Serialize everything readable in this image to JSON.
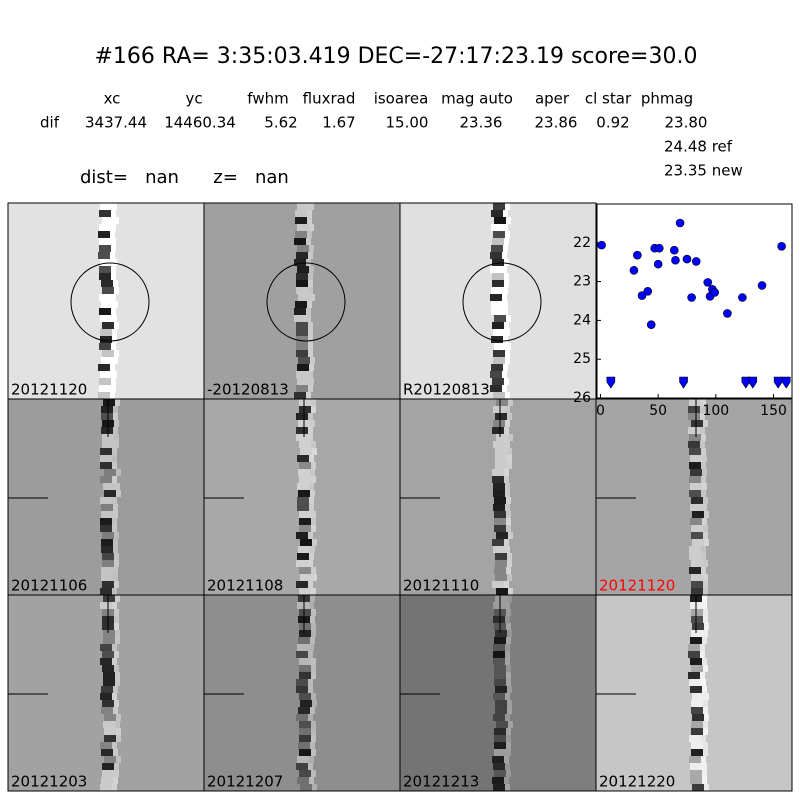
{
  "header": {
    "title": "#166   RA= 3:35:03.419 DEC=-27:17:23.19      score=30.0",
    "columns": [
      "xc",
      "yc",
      "fwhm",
      "fluxrad",
      "isoarea",
      "mag auto",
      "aper",
      "cl star",
      "phmag"
    ],
    "row_label": "dif",
    "row_values": [
      "3437.44",
      "14460.34",
      "5.62",
      "1.67",
      "15.00",
      "23.36",
      "23.86",
      "0.92",
      "23.80"
    ],
    "ref": "24.48 ref",
    "new": "23.35 new",
    "dist_line": "dist=   nan      z=   nan"
  },
  "stamps": [
    {
      "label": "20121120",
      "color": "#000000"
    },
    {
      "label": "-20120813",
      "color": "#000000"
    },
    {
      "label": "R20120813",
      "color": "#000000"
    },
    {
      "label": "20121106",
      "color": "#000000"
    },
    {
      "label": "20121108",
      "color": "#000000"
    },
    {
      "label": "20121110",
      "color": "#000000"
    },
    {
      "label": "20121120",
      "color": "#ff0000"
    },
    {
      "label": "20121203",
      "color": "#000000"
    },
    {
      "label": "20121207",
      "color": "#000000"
    },
    {
      "label": "20121213",
      "color": "#000000"
    },
    {
      "label": "20121220",
      "color": "#000000"
    }
  ],
  "chart_data": {
    "type": "scatter",
    "xlim": [
      -3,
      166
    ],
    "ylim": [
      26,
      21
    ],
    "xticks": [
      0,
      50,
      100,
      150
    ],
    "yticks": [
      22,
      23,
      24,
      25,
      26
    ],
    "series": [
      {
        "color": "#0000ff",
        "marker": "o",
        "x": [
          1,
          29,
          32,
          36,
          41,
          44,
          47,
          51,
          50,
          64,
          65,
          69,
          75,
          79,
          83,
          93,
          95,
          97,
          99,
          110,
          123,
          140,
          157
        ],
        "values": [
          22.06,
          22.71,
          22.32,
          23.36,
          23.25,
          24.11,
          22.14,
          22.14,
          22.55,
          22.19,
          22.45,
          21.49,
          22.42,
          23.41,
          22.48,
          23.02,
          23.38,
          23.2,
          23.28,
          23.82,
          23.41,
          23.1,
          22.09
        ]
      },
      {
        "color": "#0000ff",
        "marker": "v",
        "x": [
          9,
          72,
          126,
          132,
          154,
          161
        ],
        "values": [
          25.59,
          25.59,
          25.59,
          25.59,
          25.59,
          25.59
        ]
      }
    ]
  }
}
